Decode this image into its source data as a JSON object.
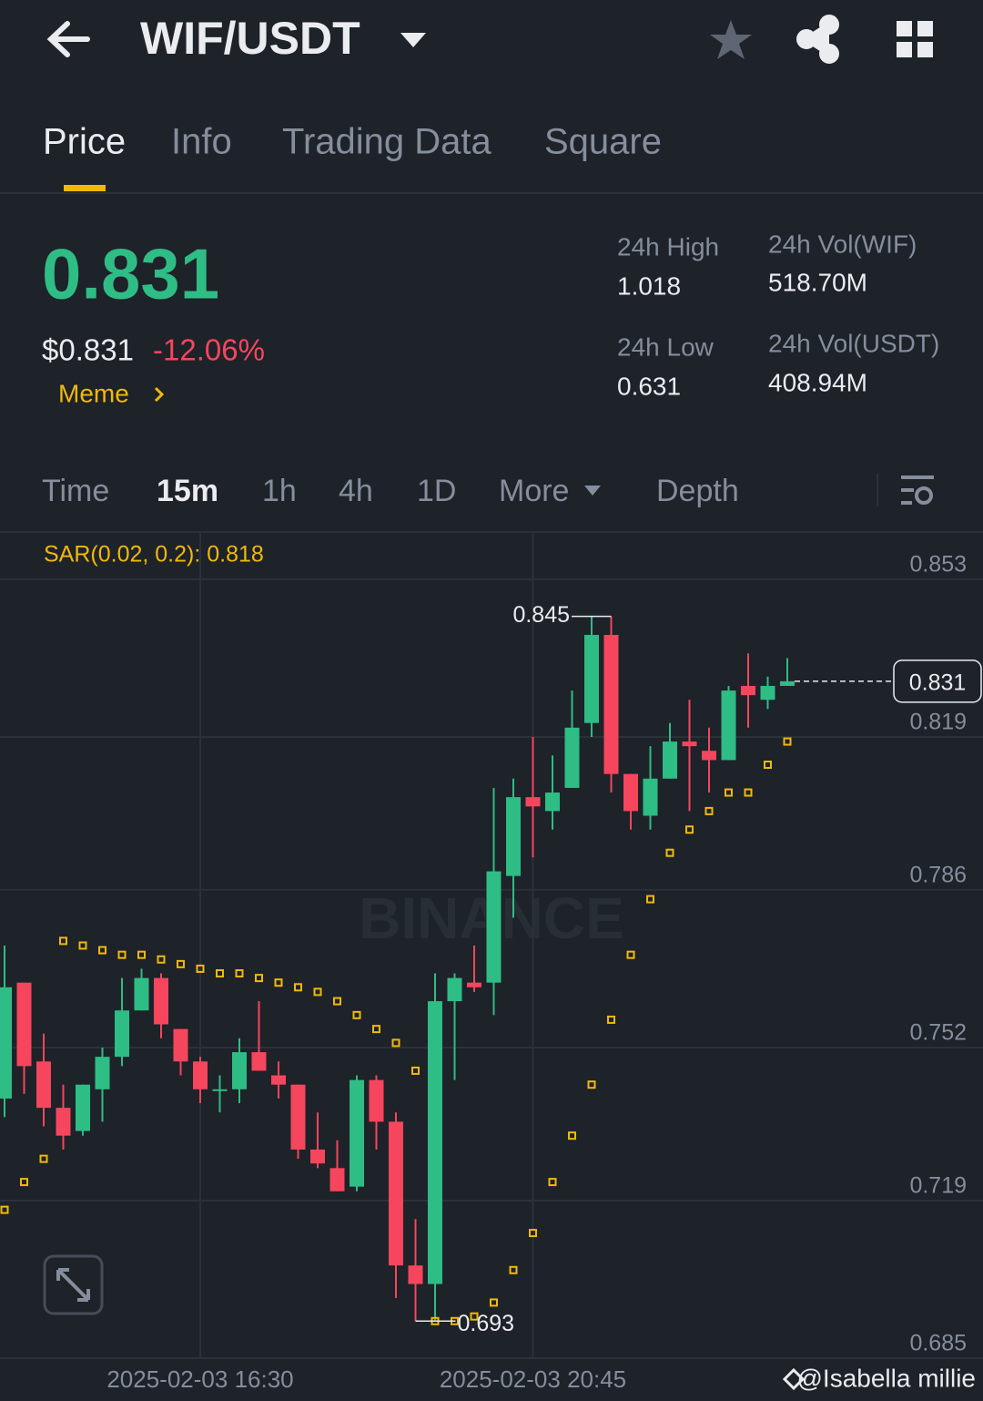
{
  "header": {
    "title": "WIF/USDT"
  },
  "tabs": [
    "Price",
    "Info",
    "Trading Data",
    "Square"
  ],
  "price": {
    "last": "0.831",
    "usd": "$0.831",
    "change": "-12.06%",
    "tag": "Meme"
  },
  "stats": [
    {
      "label": "24h High",
      "value": "1.018"
    },
    {
      "label": "24h Low",
      "value": "0.631"
    },
    {
      "label": "24h Vol(WIF)",
      "value": "518.70M"
    },
    {
      "label": "24h Vol(USDT)",
      "value": "408.94M"
    }
  ],
  "intervals": [
    "Time",
    "15m",
    "1h",
    "4h",
    "1D",
    "More",
    "Depth"
  ],
  "chart_data": {
    "type": "candlestick",
    "indicator_label": "SAR(0.02, 0.2): 0.818",
    "watermark": "BINANCE",
    "categories": [
      null,
      null,
      null,
      null,
      null,
      null,
      null,
      null,
      null,
      null,
      "2025-02-03 16:30",
      null,
      null,
      null,
      null,
      null,
      null,
      null,
      null,
      null,
      null,
      null,
      null,
      null,
      null,
      null,
      null,
      "2025-02-03 20:45",
      null,
      null,
      null,
      null,
      null,
      null,
      null,
      null,
      null,
      null,
      null,
      null,
      null
    ],
    "open": [
      0.741,
      0.766,
      0.749,
      0.739,
      0.734,
      0.743,
      0.75,
      0.76,
      0.767,
      0.756,
      0.749,
      0.743,
      0.743,
      0.751,
      0.746,
      0.744,
      0.73,
      0.726,
      0.722,
      0.745,
      0.736,
      0.705,
      0.701,
      0.762,
      0.766,
      0.766,
      0.789,
      0.806,
      0.803,
      0.808,
      0.822,
      0.841,
      0.811,
      0.802,
      0.81,
      0.818,
      0.816,
      0.814,
      0.83,
      0.827,
      0.83
    ],
    "high": [
      0.774,
      0.766,
      0.755,
      0.744,
      0.744,
      0.752,
      0.767,
      0.769,
      0.768,
      0.756,
      0.75,
      0.746,
      0.754,
      0.762,
      0.749,
      0.744,
      0.738,
      0.732,
      0.746,
      0.746,
      0.738,
      0.715,
      0.768,
      0.768,
      0.774,
      0.808,
      0.81,
      0.819,
      0.815,
      0.829,
      0.845,
      0.845,
      0.811,
      0.817,
      0.822,
      0.827,
      0.821,
      0.83,
      0.837,
      0.832,
      0.836
    ],
    "low": [
      0.737,
      0.742,
      0.735,
      0.73,
      0.733,
      0.736,
      0.748,
      0.76,
      0.754,
      0.746,
      0.74,
      0.738,
      0.74,
      0.747,
      0.741,
      0.728,
      0.726,
      0.721,
      0.721,
      0.73,
      0.698,
      0.693,
      0.693,
      0.745,
      0.764,
      0.759,
      0.78,
      0.793,
      0.799,
      0.808,
      0.819,
      0.807,
      0.799,
      0.799,
      0.81,
      0.803,
      0.807,
      0.814,
      0.821,
      0.825,
      0.83
    ],
    "close": [
      0.765,
      0.748,
      0.739,
      0.733,
      0.744,
      0.75,
      0.76,
      0.767,
      0.757,
      0.749,
      0.743,
      0.743,
      0.751,
      0.747,
      0.744,
      0.73,
      0.727,
      0.721,
      0.745,
      0.736,
      0.705,
      0.701,
      0.762,
      0.767,
      0.765,
      0.79,
      0.806,
      0.804,
      0.807,
      0.821,
      0.841,
      0.811,
      0.803,
      0.81,
      0.818,
      0.817,
      0.814,
      0.829,
      0.828,
      0.83,
      0.831
    ],
    "sar": [
      0.717,
      0.723,
      0.728,
      0.775,
      0.774,
      0.773,
      0.772,
      0.772,
      0.771,
      0.77,
      0.769,
      0.768,
      0.768,
      0.767,
      0.766,
      0.765,
      0.764,
      0.762,
      0.759,
      0.756,
      0.753,
      0.747,
      0.693,
      0.693,
      0.694,
      0.697,
      0.704,
      0.712,
      0.723,
      0.733,
      0.744,
      0.758,
      0.772,
      0.784,
      0.794,
      0.799,
      0.803,
      0.807,
      0.807,
      0.813,
      0.818
    ],
    "high_label": 0.845,
    "low_label": 0.693,
    "last_price": 0.831,
    "up_color": "#2ebd85",
    "down_color": "#f6465d",
    "sar_color": "#f0b90b",
    "ylim": [
      0.685,
      0.863
    ],
    "yticks": [
      0.853,
      0.819,
      0.786,
      0.752,
      0.719,
      0.685
    ],
    "grid": true
  },
  "footer": {
    "credit": "@Isabella millie"
  }
}
